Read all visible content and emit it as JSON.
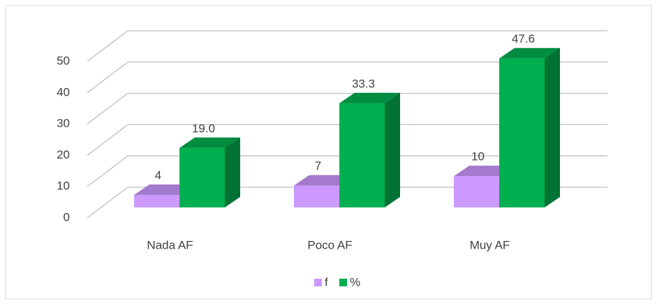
{
  "chart_data": {
    "type": "bar3d",
    "categories": [
      "Nada AF",
      "Poco AF",
      "Muy AF"
    ],
    "series": [
      {
        "name": "f",
        "color": "#cc99ff",
        "values": [
          4,
          7,
          10
        ]
      },
      {
        "name": "%",
        "color": "#00b050",
        "values": [
          19.0,
          33.3,
          47.6
        ],
        "value_labels": [
          "19.0",
          "33.3",
          "47.6"
        ]
      }
    ],
    "ylim": [
      0,
      50
    ],
    "yticks": [
      0,
      10,
      20,
      30,
      40,
      50
    ],
    "grid": true,
    "legend": "bottom"
  }
}
